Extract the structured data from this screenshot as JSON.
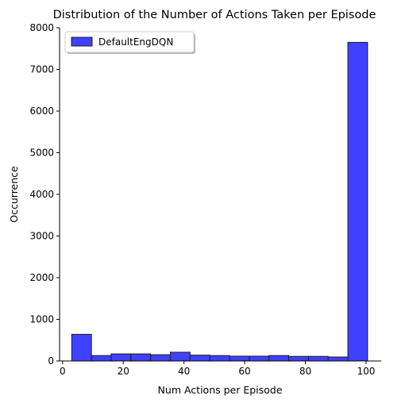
{
  "chart_data": {
    "type": "bar",
    "title": "Distribution of the Number of Actions Taken per Episode",
    "xlabel": "Num Actions per Episode",
    "ylabel": "Occurrence",
    "xlim": [
      -1,
      105
    ],
    "ylim": [
      0,
      8000
    ],
    "xticks": [
      0,
      20,
      40,
      60,
      80,
      100
    ],
    "yticks": [
      0,
      1000,
      2000,
      3000,
      4000,
      5000,
      6000,
      7000,
      8000
    ],
    "grid": false,
    "legend_position": "top-left",
    "bar_color": "#0000ff",
    "bar_edge_color": "#1f1f1f",
    "series": [
      {
        "name": "DefaultEngDQN",
        "bins": [
          {
            "x0": 3.0,
            "x1": 9.5,
            "count": 640
          },
          {
            "x0": 9.5,
            "x1": 16.0,
            "count": 130
          },
          {
            "x0": 16.0,
            "x1": 22.5,
            "count": 170
          },
          {
            "x0": 22.5,
            "x1": 29.0,
            "count": 170
          },
          {
            "x0": 29.0,
            "x1": 35.5,
            "count": 150
          },
          {
            "x0": 35.5,
            "x1": 42.0,
            "count": 210
          },
          {
            "x0": 42.0,
            "x1": 48.5,
            "count": 140
          },
          {
            "x0": 48.5,
            "x1": 55.0,
            "count": 130
          },
          {
            "x0": 55.0,
            "x1": 61.5,
            "count": 115
          },
          {
            "x0": 61.5,
            "x1": 68.0,
            "count": 115
          },
          {
            "x0": 68.0,
            "x1": 74.5,
            "count": 130
          },
          {
            "x0": 74.5,
            "x1": 81.0,
            "count": 110
          },
          {
            "x0": 81.0,
            "x1": 87.5,
            "count": 110
          },
          {
            "x0": 87.5,
            "x1": 94.0,
            "count": 95
          },
          {
            "x0": 94.0,
            "x1": 100.5,
            "count": 7650
          }
        ]
      }
    ]
  }
}
